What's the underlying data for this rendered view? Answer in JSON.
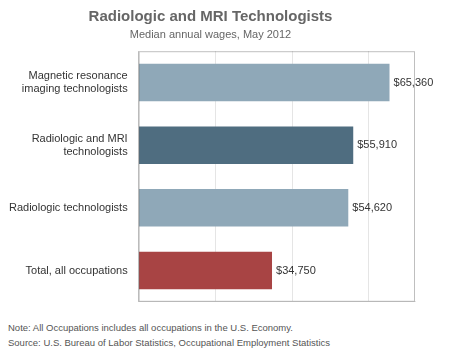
{
  "chart_data": {
    "type": "bar",
    "orientation": "horizontal",
    "title": "Radiologic and MRI Technologists",
    "subtitle": "Median annual wages, May 2012",
    "categories": [
      "Magnetic resonance\nimaging technologists",
      "Radiologic and MRI\ntechnologists",
      "Radiologic technologists",
      "Total, all occupations"
    ],
    "values": [
      65360,
      55910,
      54620,
      34750
    ],
    "value_labels": [
      "$65,360",
      "$55,910",
      "$54,620",
      "$34,750"
    ],
    "data_labels": true,
    "colors": [
      "#8fa8b8",
      "#4f6d80",
      "#8fa8b8",
      "#a84444"
    ],
    "xlim": [
      0,
      72000
    ],
    "xticks": [
      0,
      20000,
      40000,
      60000
    ],
    "grid": true,
    "tick_labels": "y",
    "annotations": [
      "Note:  All Occupations includes all occupations in the U.S. Economy.",
      "Source: U.S. Bureau of Labor Statistics, Occupational Employment Statistics"
    ]
  }
}
